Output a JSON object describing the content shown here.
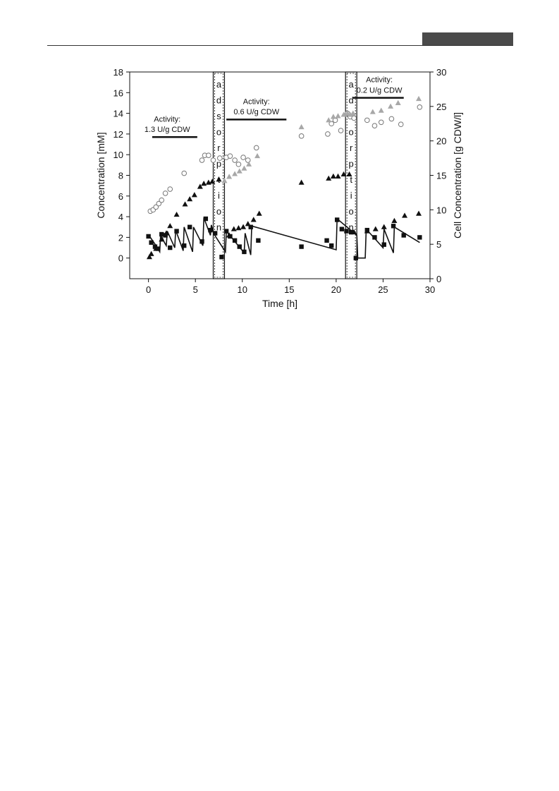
{
  "chart_data": {
    "type": "scatter",
    "xlabel": "Time [h]",
    "ylabel": "Concentration [mM]",
    "y2label": "Cell Concentration [g CDW/l]",
    "xlim": [
      -2,
      30
    ],
    "ylim": [
      -2,
      18
    ],
    "y2lim": [
      0,
      30
    ],
    "xticks": [
      0,
      5,
      10,
      15,
      20,
      25,
      30
    ],
    "yticks": [
      0,
      2,
      4,
      6,
      8,
      10,
      12,
      14,
      16,
      18
    ],
    "y2ticks": [
      0,
      5,
      10,
      15,
      20,
      25,
      30
    ],
    "grid": false,
    "colors": {
      "black": "#111111",
      "gray": "#a8a8a8",
      "open": "#777777"
    },
    "activities": [
      {
        "line1": "Activity:",
        "line2": "1.3 U/g CDW",
        "x_start": 0.4,
        "x_end": 5.2,
        "y": 11.7,
        "label_x": 2,
        "label_y1": 13.2,
        "label_y2": 12.2
      },
      {
        "line1": "Activity:",
        "line2": "0.6  U/g CDW",
        "x_start": 8.3,
        "x_end": 14.7,
        "y": 13.4,
        "label_x": 11.5,
        "label_y1": 14.9,
        "label_y2": 13.9
      },
      {
        "line1": "Activity:",
        "line2": "0.2  U/g CDW",
        "x_start": 21.8,
        "x_end": 27.2,
        "y": 15.5,
        "label_x": 24.6,
        "label_y1": 17.0,
        "label_y2": 16.0
      }
    ],
    "adsorption": [
      {
        "x_start": 6.9,
        "x_end": 8.1,
        "letters": [
          "a",
          "d",
          "s",
          "o",
          "r",
          "p",
          "t",
          "i",
          "o",
          "n"
        ]
      },
      {
        "x_start": 21.0,
        "x_end": 22.2,
        "letters": [
          "a",
          "d",
          "s",
          "o",
          "r",
          "p",
          "t",
          "i",
          "o",
          "n"
        ]
      }
    ],
    "series": [
      {
        "marker": "circle-open",
        "axis": "y2",
        "points": [
          [
            0.2,
            9.8
          ],
          [
            0.5,
            10.0
          ],
          [
            0.8,
            10.4
          ],
          [
            1.1,
            10.9
          ],
          [
            1.4,
            11.4
          ],
          [
            1.8,
            12.4
          ],
          [
            2.3,
            13.0
          ],
          [
            3.8,
            15.3
          ],
          [
            5.7,
            17.2
          ],
          [
            6.0,
            17.9
          ],
          [
            6.4,
            17.9
          ],
          [
            6.9,
            17.2
          ],
          [
            7.6,
            17.5
          ],
          [
            8.3,
            17.6
          ],
          [
            8.7,
            17.8
          ],
          [
            9.2,
            17.2
          ],
          [
            9.6,
            16.6
          ],
          [
            10.1,
            17.6
          ],
          [
            10.6,
            17.2
          ],
          [
            11.5,
            19.0
          ],
          [
            16.3,
            20.7
          ],
          [
            19.1,
            21.0
          ],
          [
            19.5,
            22.5
          ],
          [
            19.9,
            23.0
          ],
          [
            20.5,
            21.5
          ],
          [
            21.2,
            24.0
          ],
          [
            21.5,
            23.5
          ],
          [
            21.9,
            23.3
          ],
          [
            23.3,
            23.0
          ],
          [
            24.1,
            22.2
          ],
          [
            24.8,
            22.7
          ],
          [
            25.9,
            23.2
          ],
          [
            26.9,
            22.4
          ],
          [
            28.9,
            24.9
          ]
        ]
      },
      {
        "marker": "triangle-gray",
        "axis": "y2",
        "points": [
          [
            8.1,
            14.2
          ],
          [
            8.6,
            14.8
          ],
          [
            9.2,
            15.2
          ],
          [
            9.7,
            15.6
          ],
          [
            10.2,
            16.0
          ],
          [
            10.7,
            16.6
          ],
          [
            11.6,
            17.8
          ],
          [
            16.3,
            22.0
          ],
          [
            19.2,
            23.0
          ],
          [
            19.7,
            23.5
          ],
          [
            20.2,
            23.6
          ],
          [
            20.8,
            23.8
          ],
          [
            21.2,
            24.0
          ],
          [
            21.5,
            23.8
          ],
          [
            21.8,
            24.0
          ],
          [
            23.9,
            24.2
          ],
          [
            24.8,
            24.4
          ],
          [
            25.8,
            25.0
          ],
          [
            26.6,
            25.5
          ],
          [
            28.8,
            26.1
          ]
        ]
      },
      {
        "marker": "triangle-black",
        "axis": "y",
        "points": [
          [
            0.1,
            0.1
          ],
          [
            0.3,
            0.4
          ],
          [
            0.8,
            0.9
          ],
          [
            1.4,
            1.8
          ],
          [
            1.9,
            2.4
          ],
          [
            2.3,
            3.1
          ],
          [
            3.0,
            4.2
          ],
          [
            3.9,
            5.2
          ],
          [
            4.4,
            5.7
          ],
          [
            4.9,
            6.1
          ],
          [
            5.5,
            6.9
          ],
          [
            5.9,
            7.2
          ],
          [
            6.4,
            7.3
          ],
          [
            6.8,
            7.4
          ],
          [
            7.5,
            7.6
          ],
          [
            8.6,
            2.2
          ],
          [
            9.1,
            2.8
          ],
          [
            9.6,
            2.9
          ],
          [
            10.1,
            3.0
          ],
          [
            10.6,
            3.3
          ],
          [
            11.2,
            3.7
          ],
          [
            11.8,
            4.3
          ],
          [
            16.3,
            7.3
          ],
          [
            19.2,
            7.7
          ],
          [
            19.7,
            7.9
          ],
          [
            20.2,
            7.9
          ],
          [
            20.8,
            8.1
          ],
          [
            21.4,
            8.1
          ],
          [
            21.9,
            2.5
          ],
          [
            23.3,
            2.6
          ],
          [
            24.2,
            2.8
          ],
          [
            25.1,
            3.0
          ],
          [
            26.2,
            3.6
          ],
          [
            27.3,
            4.1
          ],
          [
            28.8,
            4.3
          ]
        ]
      },
      {
        "marker": "square-black",
        "axis": "y",
        "points": [
          [
            0.0,
            2.1
          ],
          [
            0.3,
            1.5
          ],
          [
            0.7,
            1.1
          ],
          [
            1.0,
            0.9
          ],
          [
            1.4,
            2.3
          ],
          [
            1.8,
            2.2
          ],
          [
            2.3,
            1.0
          ],
          [
            3.0,
            2.6
          ],
          [
            3.8,
            1.2
          ],
          [
            4.4,
            3.0
          ],
          [
            5.7,
            1.6
          ],
          [
            6.1,
            3.8
          ],
          [
            6.6,
            2.7
          ],
          [
            7.1,
            2.4
          ],
          [
            7.8,
            0.1
          ],
          [
            8.3,
            2.6
          ],
          [
            8.7,
            2.1
          ],
          [
            9.2,
            1.7
          ],
          [
            9.7,
            1.1
          ],
          [
            10.2,
            0.6
          ],
          [
            10.9,
            3.0
          ],
          [
            11.7,
            1.7
          ],
          [
            16.3,
            1.1
          ],
          [
            19.0,
            1.7
          ],
          [
            19.5,
            1.2
          ],
          [
            20.1,
            3.7
          ],
          [
            20.6,
            2.8
          ],
          [
            21.1,
            2.6
          ],
          [
            21.6,
            2.5
          ],
          [
            22.1,
            0.0
          ],
          [
            23.3,
            2.7
          ],
          [
            24.1,
            2.0
          ],
          [
            25.1,
            1.3
          ],
          [
            26.1,
            3.1
          ],
          [
            27.2,
            2.2
          ],
          [
            28.9,
            2.0
          ]
        ]
      },
      {
        "marker": "line",
        "axis": "y",
        "points": [
          [
            0.2,
            2.0
          ],
          [
            0.8,
            1.2
          ],
          [
            1.2,
            0.6
          ],
          [
            1.3,
            2.3
          ],
          [
            1.7,
            1.5
          ],
          [
            1.9,
            1.2
          ],
          [
            2.0,
            2.6
          ],
          [
            2.8,
            1.0
          ],
          [
            2.9,
            2.7
          ],
          [
            3.7,
            0.7
          ],
          [
            3.8,
            3.0
          ],
          [
            4.7,
            0.6
          ],
          [
            4.8,
            3.0
          ],
          [
            5.8,
            1.2
          ],
          [
            5.9,
            3.9
          ],
          [
            6.6,
            2.2
          ],
          [
            6.7,
            3.2
          ],
          [
            7.0,
            2.3
          ],
          [
            8.2,
            0.6
          ],
          [
            8.3,
            2.6
          ],
          [
            10.2,
            0.5
          ],
          [
            10.3,
            2.4
          ],
          [
            10.9,
            0.3
          ],
          [
            11.0,
            3.1
          ],
          [
            20.0,
            0.8
          ],
          [
            20.1,
            3.8
          ],
          [
            22.2,
            2.2
          ],
          [
            22.3,
            0.0
          ],
          [
            23.1,
            0.0
          ],
          [
            23.2,
            2.8
          ],
          [
            24.0,
            2.0
          ],
          [
            25.0,
            1.0
          ],
          [
            25.1,
            2.8
          ],
          [
            26.1,
            0.5
          ],
          [
            26.2,
            3.0
          ],
          [
            28.9,
            1.5
          ]
        ]
      }
    ]
  }
}
